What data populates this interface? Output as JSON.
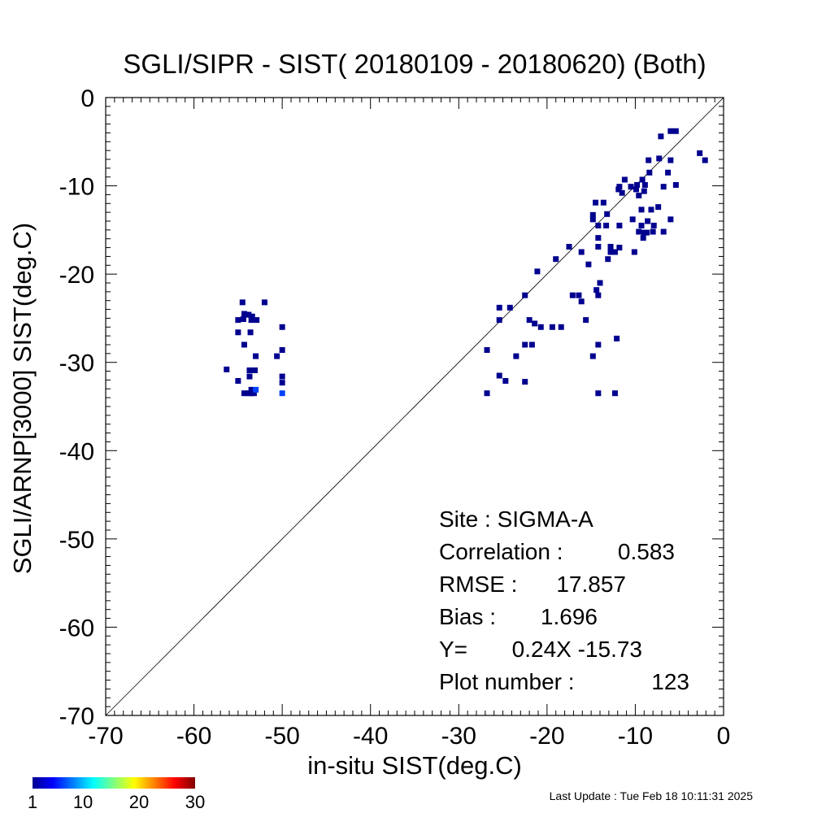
{
  "chart_data": {
    "type": "scatter",
    "title": "SGLI/SIPR - SIST( 20180109 - 20180620) (Both)",
    "xlabel": "in-situ SIST(deg.C)",
    "ylabel": "SGLI/ARNP[3000]     SIST(deg.C)",
    "xlim": [
      -70,
      0
    ],
    "ylim": [
      -70,
      0
    ],
    "x_ticks": [
      "-70",
      "-60",
      "-50",
      "-40",
      "-30",
      "-20",
      "-10",
      "0"
    ],
    "y_ticks": [
      "-70",
      "-60",
      "-50",
      "-40",
      "-30",
      "-20",
      "-10",
      "0"
    ],
    "one_to_one_line": true,
    "grid": false,
    "point_color": "#00008f",
    "highlight_color": "#0040ff",
    "points": [
      [
        -54.5,
        -23.2
      ],
      [
        -52,
        -23.2
      ],
      [
        -54.3,
        -24.5
      ],
      [
        -54,
        -24.6
      ],
      [
        -53.8,
        -24.6
      ],
      [
        -53.4,
        -24.8
      ],
      [
        -55,
        -25.2
      ],
      [
        -54.4,
        -25.1
      ],
      [
        -53.5,
        -25.2
      ],
      [
        -52.9,
        -25.2
      ],
      [
        -50,
        -26
      ],
      [
        -55,
        -26.6
      ],
      [
        -53.6,
        -26.6
      ],
      [
        -54.3,
        -28
      ],
      [
        -50,
        -28.6
      ],
      [
        -53,
        -29.3
      ],
      [
        -50.6,
        -29.3
      ],
      [
        -56.3,
        -30.8
      ],
      [
        -53.7,
        -30.9
      ],
      [
        -53.1,
        -30.9
      ],
      [
        -53.7,
        -31.6
      ],
      [
        -50,
        -31.6
      ],
      [
        -55,
        -32.1
      ],
      [
        -50,
        -32.3
      ],
      [
        -53.5,
        -33.1
      ],
      [
        -54.3,
        -33.5
      ],
      [
        -53.8,
        -33.5
      ],
      [
        -53.5,
        -33.5
      ],
      [
        -53.2,
        -33.5
      ],
      [
        -26.8,
        -28.6
      ],
      [
        -26.8,
        -33.5
      ],
      [
        -25.4,
        -23.8
      ],
      [
        -25.4,
        -25.2
      ],
      [
        -25.4,
        -31.5
      ],
      [
        -24.7,
        -32.1
      ],
      [
        -24.2,
        -23.8
      ],
      [
        -23.5,
        -29.3
      ],
      [
        -22.5,
        -22.4
      ],
      [
        -22.5,
        -28
      ],
      [
        -22.5,
        -32.2
      ],
      [
        -22,
        -25.2
      ],
      [
        -21.7,
        -28
      ],
      [
        -21.4,
        -25.6
      ],
      [
        -21.1,
        -19.7
      ],
      [
        -20.7,
        -26
      ],
      [
        -19.4,
        -26
      ],
      [
        -19,
        -18.3
      ],
      [
        -18.4,
        -26
      ],
      [
        -17.5,
        -16.9
      ],
      [
        -17.1,
        -22.4
      ],
      [
        -16.4,
        -22.4
      ],
      [
        -16.1,
        -23.1
      ],
      [
        -16.1,
        -17.5
      ],
      [
        -15.6,
        -25.2
      ],
      [
        -15.3,
        -18.9
      ],
      [
        -14.8,
        -29.3
      ],
      [
        -14.8,
        -13.3
      ],
      [
        -14.8,
        -13.8
      ],
      [
        -14.4,
        -21.8
      ],
      [
        -14.5,
        -11.9
      ],
      [
        -14.2,
        -22.4
      ],
      [
        -14.2,
        -14.5
      ],
      [
        -14.2,
        -15.9
      ],
      [
        -14.2,
        -16.9
      ],
      [
        -14.2,
        -28
      ],
      [
        -14.2,
        -33.5
      ],
      [
        -14,
        -21
      ],
      [
        -13.6,
        -11.9
      ],
      [
        -13.2,
        -13.2
      ],
      [
        -13.3,
        -14.5
      ],
      [
        -13.1,
        -18.3
      ],
      [
        -12.8,
        -17.5
      ],
      [
        -12.8,
        -16.9
      ],
      [
        -12.3,
        -17.5
      ],
      [
        -12.3,
        -33.5
      ],
      [
        -12.1,
        -27.3
      ],
      [
        -11.8,
        -17
      ],
      [
        -11.9,
        -10.4
      ],
      [
        -11.8,
        -14.5
      ],
      [
        -11.8,
        -10.1
      ],
      [
        -11.5,
        -10.8
      ],
      [
        -11.2,
        -9.3
      ],
      [
        -10.5,
        -10.1
      ],
      [
        -10.3,
        -13.8
      ],
      [
        -10.1,
        -17.5
      ],
      [
        -9.9,
        -10.4
      ],
      [
        -9.8,
        -9.9
      ],
      [
        -9.6,
        -15.2
      ],
      [
        -9.6,
        -11.1
      ],
      [
        -9.3,
        -12.7
      ],
      [
        -9.3,
        -14.5
      ],
      [
        -9.2,
        -9.3
      ],
      [
        -9.1,
        -15.9
      ],
      [
        -9,
        -15.3
      ],
      [
        -9,
        -10.6
      ],
      [
        -8.9,
        -9.9
      ],
      [
        -8.7,
        -15.3
      ],
      [
        -8.6,
        -14
      ],
      [
        -8.5,
        -7.1
      ],
      [
        -8.4,
        -8.5
      ],
      [
        -8.2,
        -12.7
      ],
      [
        -8,
        -15.2
      ],
      [
        -7.9,
        -14.5
      ],
      [
        -7.4,
        -12.4
      ],
      [
        -7.3,
        -6.9
      ],
      [
        -7.1,
        -4.4
      ],
      [
        -6.8,
        -10.1
      ],
      [
        -6.8,
        -15.2
      ],
      [
        -6.3,
        -8.5
      ],
      [
        -6,
        -13.8
      ],
      [
        -6,
        -7.1
      ],
      [
        -6,
        -3.8
      ],
      [
        -5.4,
        -3.8
      ],
      [
        -5.4,
        -9.9
      ],
      [
        -2.7,
        -6.3
      ],
      [
        -2.1,
        -7.1
      ]
    ],
    "highlight_points": [
      [
        -50,
        -33.5
      ],
      [
        -53,
        -33.1
      ]
    ],
    "stats": [
      {
        "label": "Site : SIGMA-A",
        "value": ""
      },
      {
        "label": "Correlation :",
        "value": "0.583"
      },
      {
        "label": "RMSE :",
        "value": "17.857"
      },
      {
        "label": "Bias :",
        "value": "1.696"
      },
      {
        "label": "Y=",
        "value": "0.24X -15.73"
      },
      {
        "label": "Plot number :",
        "value": "123"
      }
    ],
    "colorbar": {
      "ticks": [
        "1",
        "10",
        "20",
        "30"
      ],
      "tick_values": [
        1,
        10,
        20,
        30
      ],
      "range": [
        1,
        30
      ]
    },
    "last_update": "Last Update : Tue Feb 18 10:11:31 2025"
  }
}
